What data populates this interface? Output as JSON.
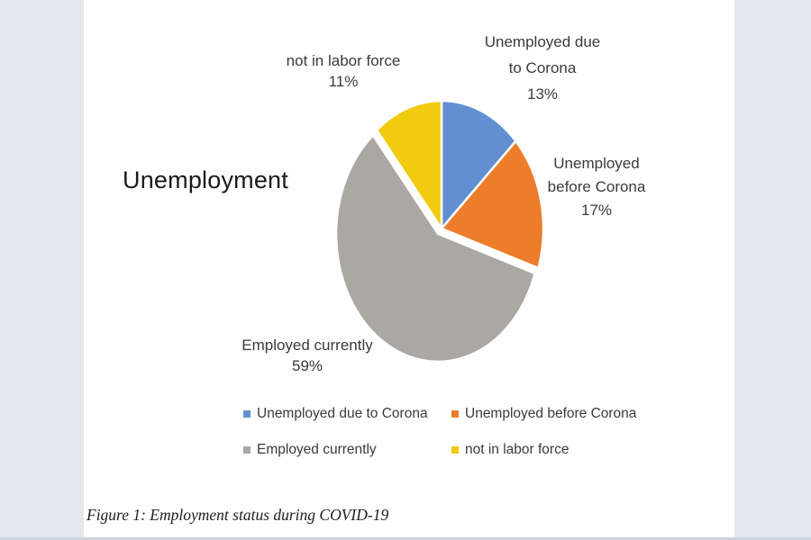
{
  "page": {
    "left_strip_color": "#e3e8ef",
    "right_strip_color": "#e3e8ef",
    "bottom_edge_color": "#cdd4df",
    "content_background": "#fefefe"
  },
  "chart_title": "Unemployment",
  "chart_data": {
    "type": "pie",
    "title": "Unemployment",
    "legend_position": "bottom",
    "slices": [
      {
        "label": "Unemployed due to Corona",
        "value": 13,
        "percent_label": "13%",
        "color": "#628FD1",
        "exploded": false
      },
      {
        "label": "Unemployed before Corona",
        "value": 17,
        "percent_label": "17%",
        "color": "#ED7D2B",
        "exploded": false
      },
      {
        "label": "Employed currently",
        "value": 59,
        "percent_label": "59%",
        "color": "#ABA8A4",
        "exploded": true
      },
      {
        "label": "not in labor force",
        "value": 11,
        "percent_label": "11%",
        "color": "#F1CB0D",
        "exploded": false
      }
    ]
  },
  "callouts": {
    "not_in_labor_force": {
      "lines": [
        "not in labor force",
        "11%"
      ]
    },
    "unemployed_due": {
      "lines": [
        "Unemployed due",
        "to Corona",
        "13%"
      ]
    },
    "unemployed_before": {
      "lines": [
        "Unemployed",
        "before Corona",
        "17%"
      ]
    },
    "employed_currently": {
      "lines": [
        "Employed currently",
        "59%"
      ]
    }
  },
  "caption": "Figure 1: Employment status during COVID-19"
}
